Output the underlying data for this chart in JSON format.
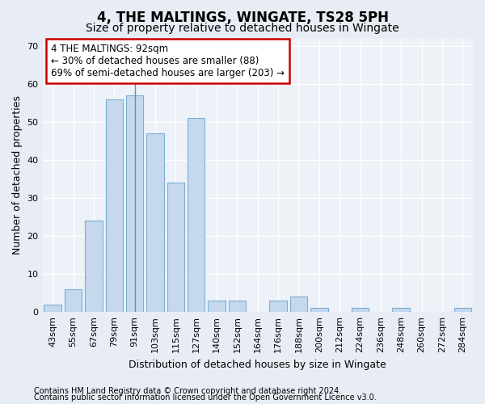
{
  "title": "4, THE MALTINGS, WINGATE, TS28 5PH",
  "subtitle": "Size of property relative to detached houses in Wingate",
  "xlabel": "Distribution of detached houses by size in Wingate",
  "ylabel": "Number of detached properties",
  "bar_labels": [
    "43sqm",
    "55sqm",
    "67sqm",
    "79sqm",
    "91sqm",
    "103sqm",
    "115sqm",
    "127sqm",
    "140sqm",
    "152sqm",
    "164sqm",
    "176sqm",
    "188sqm",
    "200sqm",
    "212sqm",
    "224sqm",
    "236sqm",
    "248sqm",
    "260sqm",
    "272sqm",
    "284sqm"
  ],
  "bar_values": [
    2,
    6,
    24,
    56,
    57,
    47,
    34,
    51,
    3,
    3,
    0,
    3,
    4,
    1,
    0,
    1,
    0,
    1,
    0,
    0,
    1
  ],
  "bar_color": "#c5d8ee",
  "bar_edge_color": "#7aafd4",
  "vline_index": 4,
  "vline_color": "#5a8fc2",
  "ylim": [
    0,
    72
  ],
  "yticks": [
    0,
    10,
    20,
    30,
    40,
    50,
    60,
    70
  ],
  "annotation_text_line1": "4 THE MALTINGS: 92sqm",
  "annotation_text_line2": "← 30% of detached houses are smaller (88)",
  "annotation_text_line3": "69% of semi-detached houses are larger (203) →",
  "annotation_box_color": "white",
  "annotation_edge_color": "#cc0000",
  "footer_line1": "Contains HM Land Registry data © Crown copyright and database right 2024.",
  "footer_line2": "Contains public sector information licensed under the Open Government Licence v3.0.",
  "bg_color": "#e8edf5",
  "plot_bg_color": "#edf1f8",
  "grid_color": "white",
  "title_fontsize": 12,
  "subtitle_fontsize": 10,
  "tick_fontsize": 8,
  "ylabel_fontsize": 9,
  "xlabel_fontsize": 9,
  "annotation_fontsize": 8.5,
  "footer_fontsize": 7
}
